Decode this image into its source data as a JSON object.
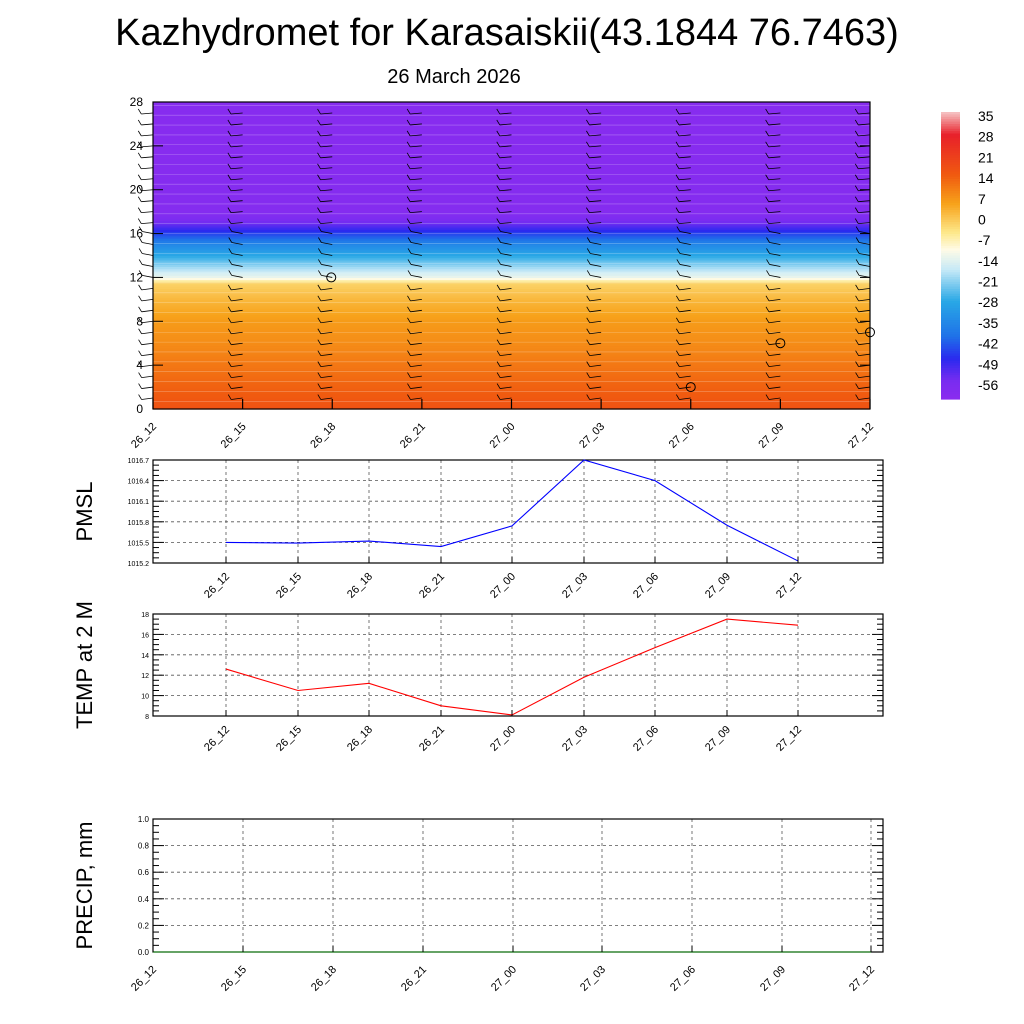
{
  "title": "Kazhydromet for Karasaiskii(43.1844 76.7463)",
  "subtitle": "26 March 2026",
  "time_labels": [
    "26_12",
    "26_15",
    "26_18",
    "26_21",
    "27_00",
    "27_03",
    "27_06",
    "27_09",
    "27_12"
  ],
  "colorbar": {
    "labels": [
      "35",
      "28",
      "21",
      "14",
      "7",
      "0",
      "-7",
      "-14",
      "-21",
      "-28",
      "-35",
      "-42",
      "-49",
      "-56"
    ],
    "stops": [
      {
        "v": 38,
        "c": "#f6c6c6"
      },
      {
        "v": 30,
        "c": "#e8202a"
      },
      {
        "v": 16,
        "c": "#f05a10"
      },
      {
        "v": 6,
        "c": "#f7a21a"
      },
      {
        "v": -4,
        "c": "#fde88a"
      },
      {
        "v": -10,
        "c": "#fffbe6"
      },
      {
        "v": -17,
        "c": "#c6e9f7"
      },
      {
        "v": -28,
        "c": "#29a8e6"
      },
      {
        "v": -40,
        "c": "#1f73e8"
      },
      {
        "v": -48,
        "c": "#2a2aef"
      },
      {
        "v": -56,
        "c": "#7a2cf0"
      },
      {
        "v": -62,
        "c": "#8a2cef"
      }
    ]
  },
  "chart_data": [
    {
      "type": "heatmap",
      "title": "",
      "y_ticks": [
        "0",
        "4",
        "8",
        "12",
        "16",
        "20",
        "24",
        "28"
      ],
      "ylim": [
        0,
        28
      ],
      "x": [
        "26_12",
        "26_15",
        "26_18",
        "26_21",
        "27_00",
        "27_03",
        "27_06",
        "27_09",
        "27_12"
      ],
      "levels": [
        0,
        2,
        4,
        6,
        8,
        10,
        11.5,
        12,
        13,
        14,
        15,
        16,
        17,
        18,
        20,
        24,
        28
      ],
      "values_by_level": [
        18,
        15,
        12,
        9,
        7,
        3,
        -1,
        -12,
        -20,
        -28,
        -35,
        -45,
        -55,
        -60,
        -60,
        -61,
        -61
      ],
      "wind_markers": [
        {
          "time": "26_18",
          "level": 12
        },
        {
          "time": "27_06",
          "level": 2
        },
        {
          "time": "27_09",
          "level": 6
        },
        {
          "time": "27_12",
          "level": 7
        }
      ]
    },
    {
      "type": "line",
      "ylabel": "PMSL",
      "y_ticks": [
        "1015.2",
        "1015.5",
        "1015.8",
        "1016.1",
        "1016.4",
        "1016.7"
      ],
      "ylim": [
        1015.2,
        1016.7
      ],
      "x": [
        "26_12",
        "26_15",
        "26_18",
        "26_21",
        "27_00",
        "27_03",
        "27_06",
        "27_09",
        "27_12"
      ],
      "series": [
        {
          "values": [
            1015.5,
            1015.49,
            1015.52,
            1015.44,
            1015.74,
            1016.7,
            1016.4,
            1015.75,
            1015.23
          ],
          "color": "#0000ff"
        }
      ]
    },
    {
      "type": "line",
      "ylabel": "TEMP at 2 M",
      "y_ticks": [
        "8",
        "10",
        "12",
        "14",
        "16",
        "18"
      ],
      "ylim": [
        8,
        18
      ],
      "x": [
        "26_12",
        "26_15",
        "26_18",
        "26_21",
        "27_00",
        "27_03",
        "27_06",
        "27_09",
        "27_12"
      ],
      "series": [
        {
          "values": [
            12.6,
            10.5,
            11.2,
            9.0,
            8.1,
            11.8,
            14.7,
            17.5,
            16.9
          ],
          "color": "#ff0000"
        }
      ]
    },
    {
      "type": "line",
      "ylabel": "PRECIP, mm",
      "y_ticks": [
        "0.0",
        "0.2",
        "0.4",
        "0.6",
        "0.8",
        "1.0"
      ],
      "ylim": [
        0,
        1
      ],
      "x": [
        "26_12",
        "26_15",
        "26_18",
        "26_21",
        "27_00",
        "27_03",
        "27_06",
        "27_09",
        "27_12"
      ],
      "series": [
        {
          "values": [
            0,
            0,
            0,
            0,
            0,
            0,
            0,
            0,
            0
          ],
          "color": "#007a00"
        }
      ]
    }
  ]
}
